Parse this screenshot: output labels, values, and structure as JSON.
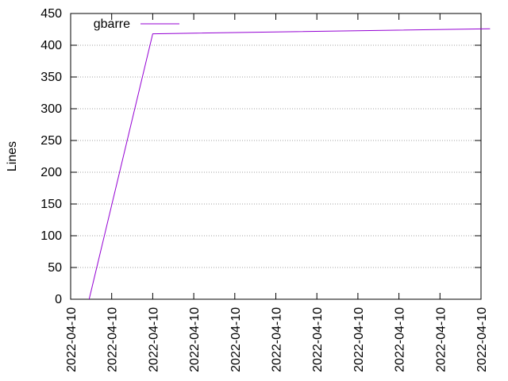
{
  "chart_data": {
    "type": "line",
    "title": "",
    "xlabel": "",
    "ylabel": "Lines",
    "ylim": [
      0,
      450
    ],
    "y_ticks": [
      0,
      50,
      100,
      150,
      200,
      250,
      300,
      350,
      400,
      450
    ],
    "x_ticks": [
      "2022-04-10",
      "2022-04-10",
      "2022-04-10",
      "2022-04-10",
      "2022-04-10",
      "2022-04-10",
      "2022-04-10",
      "2022-04-10",
      "2022-04-10",
      "2022-04-10",
      "2022-04-10"
    ],
    "grid": "horizontal dotted",
    "legend_position": "top-left",
    "series": [
      {
        "name": "gbarre",
        "color": "#9400d3",
        "x_position": [
          0.045,
          0.2,
          1.022
        ],
        "y": [
          0,
          418,
          426
        ]
      }
    ]
  }
}
